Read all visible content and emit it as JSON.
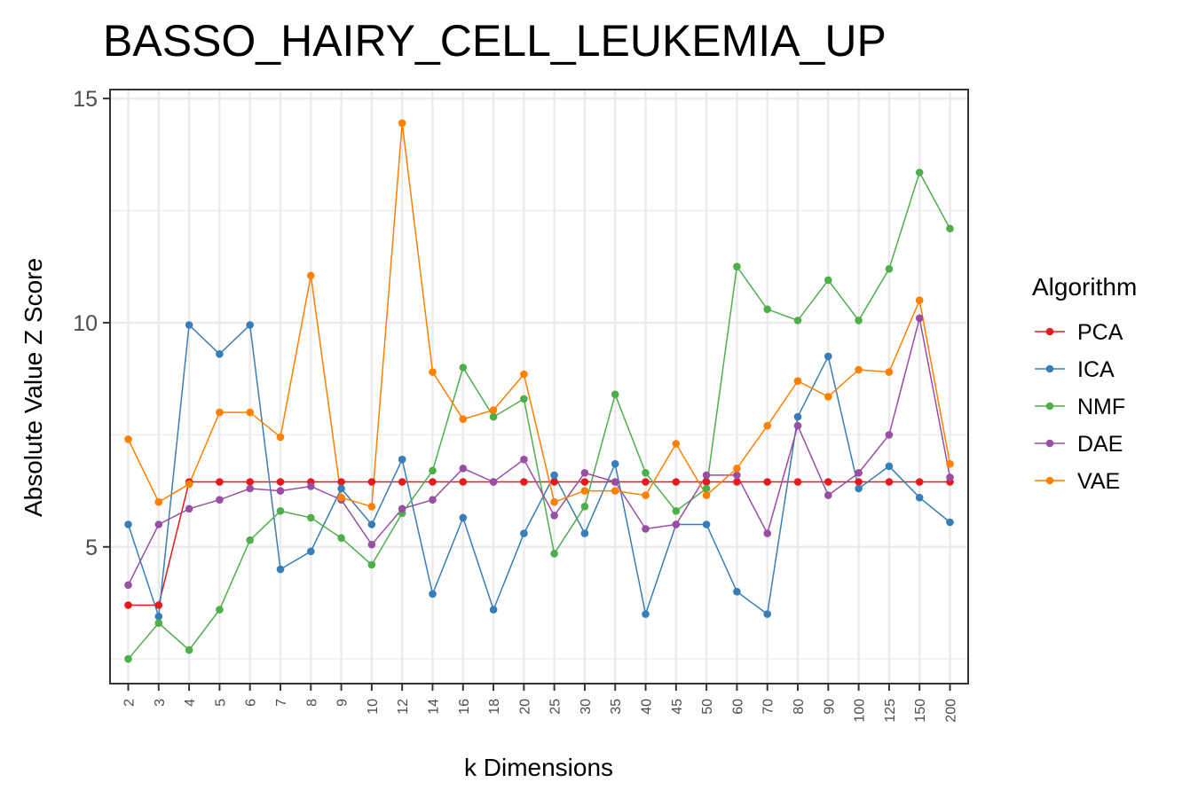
{
  "chart_data": {
    "type": "line",
    "title": "BASSO_HAIRY_CELL_LEUKEMIA_UP",
    "xlabel": "k Dimensions",
    "ylabel": "Absolute Value Z Score",
    "categories": [
      "2",
      "3",
      "4",
      "5",
      "6",
      "7",
      "8",
      "9",
      "10",
      "12",
      "14",
      "16",
      "18",
      "20",
      "25",
      "30",
      "35",
      "40",
      "45",
      "50",
      "60",
      "70",
      "80",
      "90",
      "100",
      "125",
      "150",
      "200"
    ],
    "ylim": [
      1.95,
      15.2
    ],
    "yticks": [
      5,
      10,
      15
    ],
    "grid": true,
    "legend_title": "Algorithm",
    "legend_position": "right",
    "series": [
      {
        "name": "PCA",
        "color": "#e41a1c",
        "values": [
          3.7,
          3.7,
          6.45,
          6.45,
          6.45,
          6.45,
          6.45,
          6.45,
          6.45,
          6.45,
          6.45,
          6.45,
          6.45,
          6.45,
          6.45,
          6.45,
          6.45,
          6.45,
          6.45,
          6.45,
          6.45,
          6.45,
          6.45,
          6.45,
          6.45,
          6.45,
          6.45,
          6.45
        ]
      },
      {
        "name": "ICA",
        "color": "#377eb8",
        "values": [
          5.5,
          3.45,
          9.95,
          9.3,
          9.95,
          4.5,
          4.9,
          6.3,
          5.5,
          6.95,
          3.95,
          5.65,
          3.6,
          5.3,
          6.6,
          5.3,
          6.85,
          3.5,
          5.5,
          5.5,
          4.0,
          3.5,
          7.9,
          9.25,
          6.3,
          6.8,
          6.1,
          5.55
        ]
      },
      {
        "name": "NMF",
        "color": "#4daf4a",
        "values": [
          2.5,
          3.3,
          2.7,
          3.6,
          5.15,
          5.8,
          5.65,
          5.2,
          4.6,
          5.75,
          6.7,
          9.0,
          7.9,
          8.3,
          4.85,
          5.9,
          8.4,
          6.65,
          5.8,
          6.3,
          11.25,
          10.3,
          10.05,
          10.95,
          10.05,
          11.2,
          13.35,
          12.1
        ]
      },
      {
        "name": "DAE",
        "color": "#984ea3",
        "values": [
          4.15,
          5.5,
          5.85,
          6.05,
          6.3,
          6.25,
          6.35,
          6.05,
          5.05,
          5.85,
          6.05,
          6.75,
          6.45,
          6.95,
          5.7,
          6.65,
          6.45,
          5.4,
          5.5,
          6.6,
          6.6,
          5.3,
          7.7,
          6.15,
          6.65,
          7.5,
          10.1,
          6.55
        ]
      },
      {
        "name": "VAE",
        "color": "#ff7f00",
        "values": [
          7.4,
          6.0,
          6.4,
          8.0,
          8.0,
          7.45,
          11.05,
          6.1,
          5.9,
          14.45,
          8.9,
          7.85,
          8.05,
          8.85,
          6.0,
          6.25,
          6.25,
          6.15,
          7.3,
          6.15,
          6.75,
          7.7,
          8.7,
          8.35,
          8.95,
          8.9,
          10.5,
          6.85
        ]
      }
    ]
  }
}
